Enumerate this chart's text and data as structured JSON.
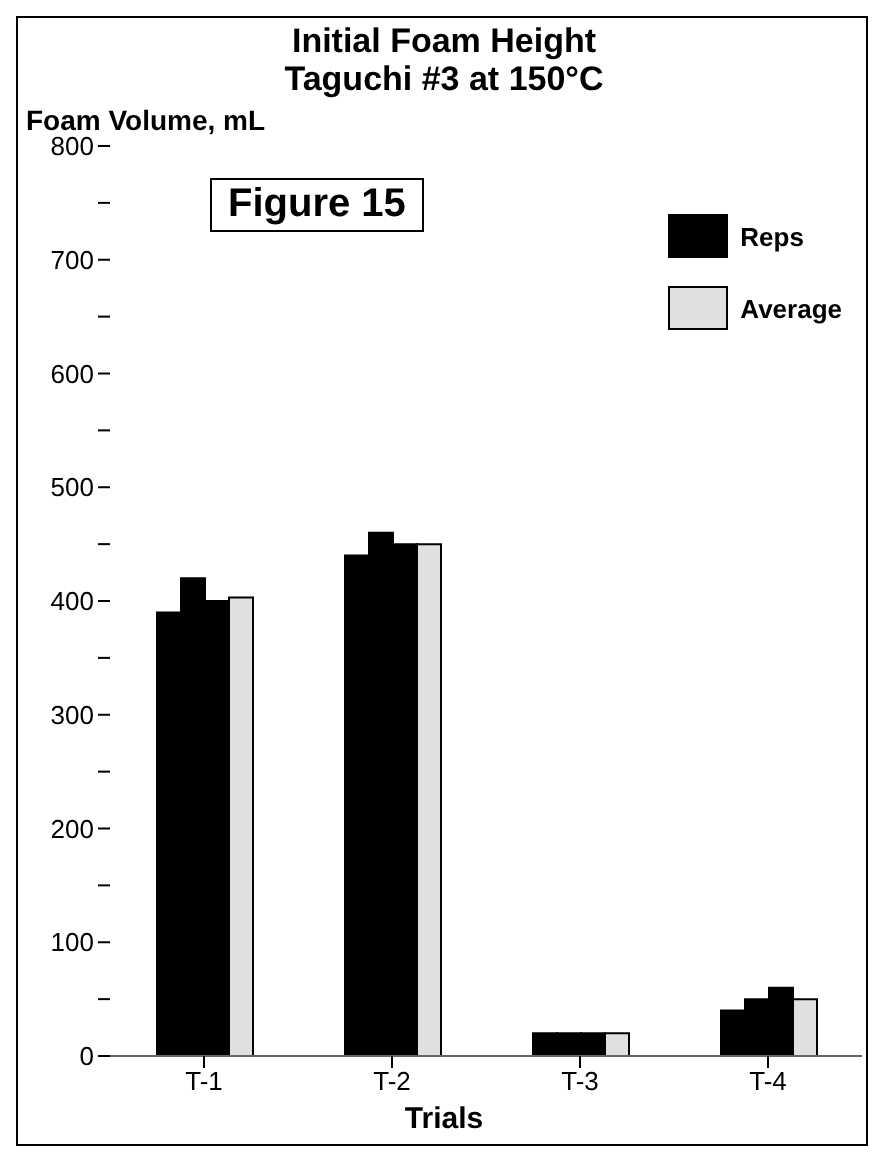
{
  "chart_data": {
    "type": "bar",
    "title": "Initial Foam Height\nTaguchi #3 at 150°C",
    "ylabel": "Foam Volume, mL",
    "xlabel": "Trials",
    "categories": [
      "T-1",
      "T-2",
      "T-3",
      "T-4"
    ],
    "series": [
      {
        "name": "Reps",
        "color": "#000000",
        "values": [
          390,
          440,
          20,
          40
        ]
      },
      {
        "color": "#000000",
        "values": [
          420,
          460,
          20,
          50
        ]
      },
      {
        "color": "#000000",
        "values": [
          400,
          450,
          20,
          60
        ]
      },
      {
        "name": "Average",
        "color": "#e0e0e0",
        "values": [
          403,
          450,
          20,
          50
        ]
      }
    ],
    "ylim": [
      0,
      800
    ],
    "yticks": [
      0,
      {
        "value": 50,
        "label": null
      },
      100,
      {
        "value": 150,
        "label": null
      },
      200,
      {
        "value": 250,
        "label": null
      },
      300,
      {
        "value": 350,
        "label": null
      },
      400,
      {
        "value": 450,
        "label": null
      },
      500,
      {
        "value": 550,
        "label": null
      },
      600,
      {
        "value": 650,
        "label": null
      },
      700,
      {
        "value": 750,
        "label": null
      },
      800
    ],
    "annotations": [
      "Figure 15"
    ],
    "legend": "top right",
    "grid": false
  }
}
